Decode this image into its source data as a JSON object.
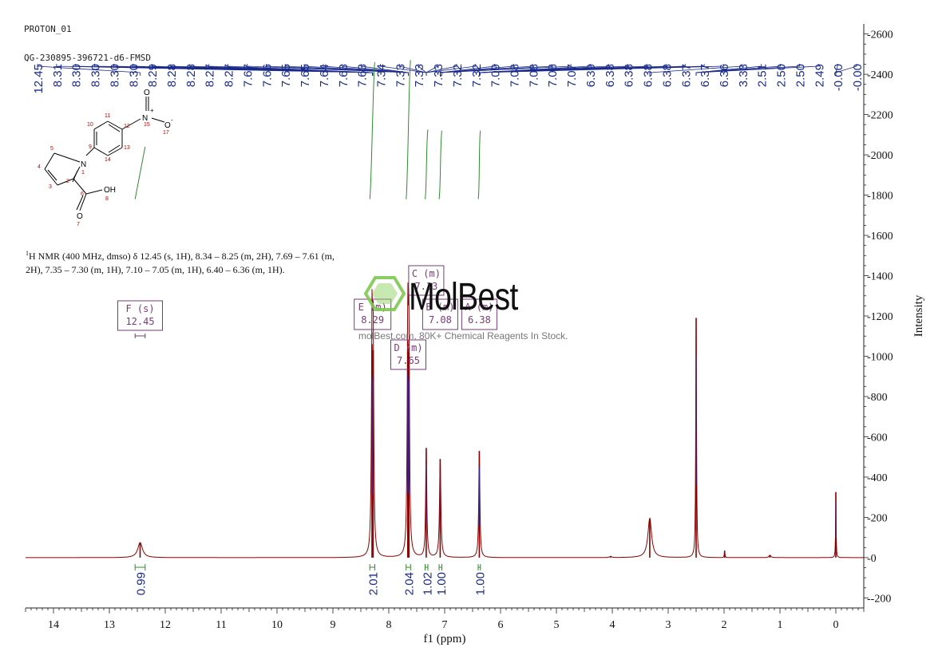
{
  "header": {
    "line1": "PROTON_01",
    "line2": "QG-230895-396721-d6-FMSD"
  },
  "description": {
    "prefix": "1",
    "text": "H NMR (400 MHz, dmso) δ 12.45 (s, 1H), 8.34 – 8.25 (m, 2H), 7.69 – 7.61 (m, 2H), 7.35 – 7.30 (m, 1H), 7.10 – 7.05 (m, 1H), 6.40 – 6.36 (m, 1H)."
  },
  "watermark": {
    "brand": "MolBest",
    "tagline": "molBest.com, 80K+ Chemical Reagents In Stock."
  },
  "molecule": {
    "atoms": [
      "O",
      "N",
      "+",
      "15",
      "O",
      "-",
      "17",
      "10",
      "11",
      "12",
      "9",
      "13",
      "14",
      "N",
      "1",
      "5",
      "4",
      "3",
      "2",
      "6",
      "OH",
      "8",
      "O",
      "7"
    ]
  },
  "chart_data": {
    "type": "line",
    "xlabel": "f1 (ppm)",
    "ylabel": "Intensity",
    "xlim": [
      14.5,
      -0.5
    ],
    "ylim": [
      -250,
      2650
    ],
    "x_ticks": [
      14,
      13,
      12,
      11,
      10,
      9,
      8,
      7,
      6,
      5,
      4,
      3,
      2,
      1,
      0
    ],
    "y_ticks": [
      -200,
      0,
      200,
      400,
      600,
      800,
      1000,
      1200,
      1400,
      1600,
      1800,
      2000,
      2200,
      2400,
      2600
    ],
    "peak_labels": [
      "12.45",
      "8.31",
      "8.30",
      "8.30",
      "8.30",
      "8.30",
      "8.29",
      "8.28",
      "8.28",
      "8.27",
      "8.27",
      "7.67",
      "7.66",
      "7.65",
      "7.65",
      "7.64",
      "7.63",
      "7.63",
      "7.34",
      "7.33",
      "7.33",
      "7.33",
      "7.32",
      "7.32",
      "7.09",
      "7.08",
      "7.08",
      "7.08",
      "7.07",
      "6.39",
      "6.38",
      "6.38",
      "6.38",
      "6.38",
      "6.37",
      "6.37",
      "6.36",
      "3.33",
      "2.51",
      "2.50",
      "2.50",
      "2.49",
      "-0.00",
      "-0.00"
    ],
    "peaks": [
      {
        "ppm": 12.45,
        "height": 75,
        "width": 0.05
      },
      {
        "ppm": 8.3,
        "height": 1060,
        "width": 0.012
      },
      {
        "ppm": 8.28,
        "height": 1030,
        "width": 0.012
      },
      {
        "ppm": 7.66,
        "height": 1080,
        "width": 0.012
      },
      {
        "ppm": 7.64,
        "height": 1040,
        "width": 0.012
      },
      {
        "ppm": 7.33,
        "height": 545,
        "width": 0.012
      },
      {
        "ppm": 7.08,
        "height": 490,
        "width": 0.014
      },
      {
        "ppm": 6.38,
        "height": 530,
        "width": 0.012
      },
      {
        "ppm": 4.03,
        "height": 6,
        "width": 0.02
      },
      {
        "ppm": 3.33,
        "height": 195,
        "width": 0.04
      },
      {
        "ppm": 2.5,
        "height": 1190,
        "width": 0.008
      },
      {
        "ppm": 1.99,
        "height": 35,
        "width": 0.006
      },
      {
        "ppm": 1.18,
        "height": 12,
        "width": 0.02
      },
      {
        "ppm": 0.0,
        "height": 325,
        "width": 0.005
      }
    ],
    "multiplets": [
      {
        "letter": "F",
        "type": "s",
        "shift": "12.45",
        "from": 12.54,
        "to": 12.36
      },
      {
        "letter": "E",
        "type": "m",
        "shift": "8.29"
      },
      {
        "letter": "D",
        "type": "m",
        "shift": "7.65"
      },
      {
        "letter": "C",
        "type": "m",
        "shift": "7.33"
      },
      {
        "letter": "B",
        "type": "m",
        "shift": "7.08"
      },
      {
        "letter": "A",
        "type": "m",
        "shift": "6.38"
      }
    ],
    "integrations": [
      {
        "ppm": 12.45,
        "value": "0.99",
        "from": 12.54,
        "to": 12.36,
        "rise": 260
      },
      {
        "ppm": 8.29,
        "value": "2.01",
        "from": 8.34,
        "to": 8.25,
        "rise": 680
      },
      {
        "ppm": 7.65,
        "value": "2.04",
        "from": 7.69,
        "to": 7.61,
        "rise": 690
      },
      {
        "ppm": 7.33,
        "value": "1.02",
        "from": 7.35,
        "to": 7.3,
        "rise": 345
      },
      {
        "ppm": 7.08,
        "value": "1.00",
        "from": 7.1,
        "to": 7.05,
        "rise": 340
      },
      {
        "ppm": 6.38,
        "value": "1.00",
        "from": 6.4,
        "to": 6.36,
        "rise": 340
      }
    ],
    "colors": {
      "spectrum": "#8b0000",
      "peak_core": "#2030c0",
      "integral": "#2e8b2e",
      "label": "#1a2a8c",
      "box": "#7a3a7a",
      "axis": "#222222"
    }
  }
}
